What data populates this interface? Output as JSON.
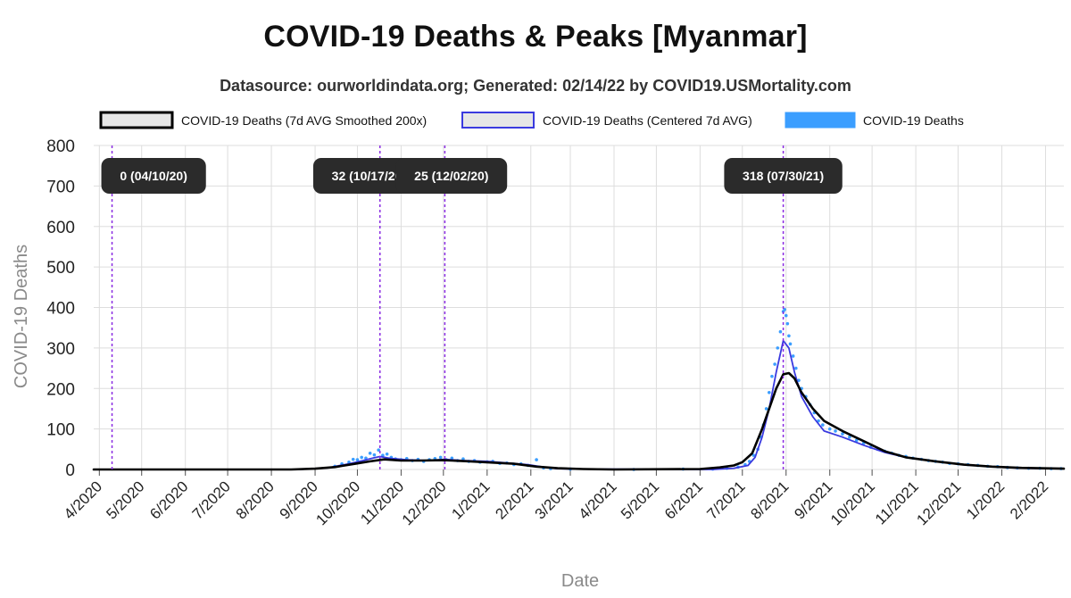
{
  "title": "COVID-19 Deaths & Peaks [Myanmar]",
  "subtitle": "Datasource: ourworldindata.org; Generated: 02/14/22 by COVID19.USMortality.com",
  "colors": {
    "smoothed": "#000000",
    "centered": "#3a3adf",
    "raw": "#3b9eff",
    "peak_line": "#8a2be2",
    "peak_box": "#2b2b2b",
    "grid": "#dddddd"
  },
  "chart_data": {
    "type": "line",
    "title": "COVID-19 Deaths & Peaks [Myanmar]",
    "xlabel": "Date",
    "ylabel": "COVID-19 Deaths",
    "ylim": [
      0,
      800
    ],
    "yticks": [
      0,
      100,
      200,
      300,
      400,
      500,
      600,
      700,
      800
    ],
    "xlim": [
      "2020-03-28",
      "2022-02-14"
    ],
    "xtick_labels": [
      "4/2020",
      "5/2020",
      "6/2020",
      "7/2020",
      "8/2020",
      "9/2020",
      "10/2020",
      "11/2020",
      "12/2020",
      "1/2021",
      "2/2021",
      "3/2021",
      "4/2021",
      "5/2021",
      "6/2021",
      "7/2021",
      "8/2021",
      "9/2021",
      "10/2021",
      "11/2021",
      "12/2021",
      "1/2022",
      "2/2022"
    ],
    "xtick_dates": [
      "2020-04-01",
      "2020-05-01",
      "2020-06-01",
      "2020-07-01",
      "2020-08-01",
      "2020-09-01",
      "2020-10-01",
      "2020-11-01",
      "2020-12-01",
      "2021-01-01",
      "2021-02-01",
      "2021-03-01",
      "2021-04-01",
      "2021-05-01",
      "2021-06-01",
      "2021-07-01",
      "2021-08-01",
      "2021-09-01",
      "2021-10-01",
      "2021-11-01",
      "2021-12-01",
      "2022-01-01",
      "2022-02-01"
    ],
    "grid": true,
    "legend_position": "top",
    "legend": [
      {
        "label": "COVID-19 Deaths (7d AVG Smoothed 200x)",
        "style": "smoothed"
      },
      {
        "label": "COVID-19 Deaths (Centered 7d AVG)",
        "style": "centered"
      },
      {
        "label": "COVID-19 Deaths",
        "style": "raw"
      }
    ],
    "series": [
      {
        "name": "COVID-19 Deaths (7d AVG Smoothed 200x)",
        "style": "smoothed",
        "points": [
          [
            "2020-03-28",
            0
          ],
          [
            "2020-08-15",
            0
          ],
          [
            "2020-09-01",
            2
          ],
          [
            "2020-09-15",
            6
          ],
          [
            "2020-10-01",
            15
          ],
          [
            "2020-10-10",
            20
          ],
          [
            "2020-10-20",
            25
          ],
          [
            "2020-11-01",
            22
          ],
          [
            "2020-11-15",
            22
          ],
          [
            "2020-12-01",
            23
          ],
          [
            "2020-12-20",
            20
          ],
          [
            "2021-01-05",
            17
          ],
          [
            "2021-01-20",
            14
          ],
          [
            "2021-02-05",
            7
          ],
          [
            "2021-02-20",
            3
          ],
          [
            "2021-03-10",
            1
          ],
          [
            "2021-04-01",
            0
          ],
          [
            "2021-06-01",
            1
          ],
          [
            "2021-06-15",
            5
          ],
          [
            "2021-06-25",
            10
          ],
          [
            "2021-07-01",
            18
          ],
          [
            "2021-07-08",
            40
          ],
          [
            "2021-07-15",
            100
          ],
          [
            "2021-07-20",
            150
          ],
          [
            "2021-07-25",
            200
          ],
          [
            "2021-07-30",
            235
          ],
          [
            "2021-08-03",
            238
          ],
          [
            "2021-08-07",
            225
          ],
          [
            "2021-08-12",
            190
          ],
          [
            "2021-08-20",
            150
          ],
          [
            "2021-08-28",
            120
          ],
          [
            "2021-09-10",
            95
          ],
          [
            "2021-09-25",
            70
          ],
          [
            "2021-10-10",
            45
          ],
          [
            "2021-10-25",
            30
          ],
          [
            "2021-11-15",
            20
          ],
          [
            "2021-12-05",
            12
          ],
          [
            "2021-12-25",
            7
          ],
          [
            "2022-01-15",
            4
          ],
          [
            "2022-02-14",
            2
          ]
        ]
      },
      {
        "name": "COVID-19 Deaths (Centered 7d AVG)",
        "style": "centered",
        "points": [
          [
            "2020-03-28",
            0
          ],
          [
            "2020-08-20",
            0
          ],
          [
            "2020-09-10",
            4
          ],
          [
            "2020-09-25",
            14
          ],
          [
            "2020-10-05",
            22
          ],
          [
            "2020-10-12",
            28
          ],
          [
            "2020-10-17",
            32
          ],
          [
            "2020-10-25",
            27
          ],
          [
            "2020-11-05",
            24
          ],
          [
            "2020-11-20",
            22
          ],
          [
            "2020-12-02",
            25
          ],
          [
            "2020-12-15",
            22
          ],
          [
            "2021-01-01",
            20
          ],
          [
            "2021-01-15",
            16
          ],
          [
            "2021-01-30",
            12
          ],
          [
            "2021-02-10",
            6
          ],
          [
            "2021-02-20",
            2
          ],
          [
            "2021-03-05",
            1
          ],
          [
            "2021-06-10",
            0
          ],
          [
            "2021-06-25",
            3
          ],
          [
            "2021-07-05",
            10
          ],
          [
            "2021-07-10",
            30
          ],
          [
            "2021-07-15",
            80
          ],
          [
            "2021-07-20",
            150
          ],
          [
            "2021-07-25",
            240
          ],
          [
            "2021-07-30",
            318
          ],
          [
            "2021-08-03",
            300
          ],
          [
            "2021-08-07",
            240
          ],
          [
            "2021-08-12",
            180
          ],
          [
            "2021-08-20",
            130
          ],
          [
            "2021-08-28",
            95
          ],
          [
            "2021-09-10",
            80
          ],
          [
            "2021-09-25",
            60
          ],
          [
            "2021-10-10",
            42
          ],
          [
            "2021-10-25",
            30
          ],
          [
            "2021-11-15",
            20
          ],
          [
            "2021-12-05",
            12
          ],
          [
            "2021-12-25",
            7
          ],
          [
            "2022-01-15",
            3
          ],
          [
            "2022-02-14",
            2
          ]
        ]
      },
      {
        "name": "COVID-19 Deaths",
        "style": "raw",
        "points": [
          [
            "2020-09-15",
            8
          ],
          [
            "2020-09-20",
            14
          ],
          [
            "2020-09-25",
            18
          ],
          [
            "2020-09-28",
            25
          ],
          [
            "2020-10-01",
            24
          ],
          [
            "2020-10-04",
            30
          ],
          [
            "2020-10-07",
            28
          ],
          [
            "2020-10-10",
            40
          ],
          [
            "2020-10-13",
            36
          ],
          [
            "2020-10-16",
            48
          ],
          [
            "2020-10-19",
            35
          ],
          [
            "2020-10-22",
            38
          ],
          [
            "2020-10-25",
            30
          ],
          [
            "2020-10-28",
            26
          ],
          [
            "2020-11-01",
            24
          ],
          [
            "2020-11-05",
            27
          ],
          [
            "2020-11-09",
            22
          ],
          [
            "2020-11-13",
            25
          ],
          [
            "2020-11-17",
            20
          ],
          [
            "2020-11-21",
            24
          ],
          [
            "2020-11-25",
            27
          ],
          [
            "2020-11-29",
            30
          ],
          [
            "2020-12-03",
            24
          ],
          [
            "2020-12-07",
            28
          ],
          [
            "2020-12-11",
            22
          ],
          [
            "2020-12-15",
            26
          ],
          [
            "2020-12-19",
            20
          ],
          [
            "2020-12-23",
            22
          ],
          [
            "2020-12-27",
            18
          ],
          [
            "2021-01-01",
            19
          ],
          [
            "2021-01-05",
            20
          ],
          [
            "2021-01-10",
            15
          ],
          [
            "2021-01-15",
            16
          ],
          [
            "2021-01-20",
            12
          ],
          [
            "2021-01-25",
            14
          ],
          [
            "2021-01-30",
            10
          ],
          [
            "2021-02-05",
            24
          ],
          [
            "2021-02-10",
            4
          ],
          [
            "2021-02-15",
            2
          ],
          [
            "2021-03-01",
            1
          ],
          [
            "2021-04-15",
            0
          ],
          [
            "2021-05-20",
            1
          ],
          [
            "2021-06-10",
            1
          ],
          [
            "2021-06-20",
            3
          ],
          [
            "2021-06-28",
            6
          ],
          [
            "2021-07-03",
            12
          ],
          [
            "2021-07-06",
            20
          ],
          [
            "2021-07-09",
            35
          ],
          [
            "2021-07-12",
            50
          ],
          [
            "2021-07-14",
            80
          ],
          [
            "2021-07-16",
            110
          ],
          [
            "2021-07-18",
            150
          ],
          [
            "2021-07-20",
            190
          ],
          [
            "2021-07-22",
            230
          ],
          [
            "2021-07-24",
            260
          ],
          [
            "2021-07-26",
            300
          ],
          [
            "2021-07-28",
            340
          ],
          [
            "2021-07-30",
            390
          ],
          [
            "2021-07-31",
            395
          ],
          [
            "2021-08-01",
            380
          ],
          [
            "2021-08-02",
            360
          ],
          [
            "2021-08-03",
            330
          ],
          [
            "2021-08-04",
            310
          ],
          [
            "2021-08-06",
            280
          ],
          [
            "2021-08-08",
            250
          ],
          [
            "2021-08-10",
            220
          ],
          [
            "2021-08-12",
            200
          ],
          [
            "2021-08-15",
            180
          ],
          [
            "2021-08-18",
            160
          ],
          [
            "2021-08-21",
            140
          ],
          [
            "2021-08-24",
            120
          ],
          [
            "2021-08-27",
            110
          ],
          [
            "2021-09-01",
            100
          ],
          [
            "2021-09-05",
            95
          ],
          [
            "2021-09-10",
            88
          ],
          [
            "2021-09-15",
            80
          ],
          [
            "2021-09-20",
            72
          ],
          [
            "2021-09-25",
            65
          ],
          [
            "2021-09-30",
            55
          ],
          [
            "2021-10-05",
            50
          ],
          [
            "2021-10-10",
            45
          ],
          [
            "2021-10-15",
            40
          ],
          [
            "2021-10-20",
            35
          ],
          [
            "2021-10-25",
            32
          ],
          [
            "2021-10-30",
            28
          ],
          [
            "2021-11-05",
            25
          ],
          [
            "2021-11-10",
            22
          ],
          [
            "2021-11-15",
            20
          ],
          [
            "2021-11-20",
            18
          ],
          [
            "2021-11-25",
            15
          ],
          [
            "2021-12-01",
            14
          ],
          [
            "2021-12-08",
            12
          ],
          [
            "2021-12-15",
            10
          ],
          [
            "2021-12-22",
            8
          ],
          [
            "2021-12-29",
            7
          ],
          [
            "2022-01-05",
            5
          ],
          [
            "2022-01-12",
            4
          ],
          [
            "2022-01-20",
            3
          ],
          [
            "2022-01-28",
            3
          ],
          [
            "2022-02-05",
            2
          ],
          [
            "2022-02-12",
            2
          ]
        ]
      }
    ],
    "peaks": [
      {
        "date": "2020-04-10",
        "label": "0 (04/10/20)",
        "value": 0
      },
      {
        "date": "2020-10-17",
        "label": "32 (10/17/20)",
        "value": 32
      },
      {
        "date": "2020-12-02",
        "label": "25 (12/02/20)",
        "value": 25
      },
      {
        "date": "2021-07-30",
        "label": "318 (07/30/21)",
        "value": 318
      }
    ]
  }
}
